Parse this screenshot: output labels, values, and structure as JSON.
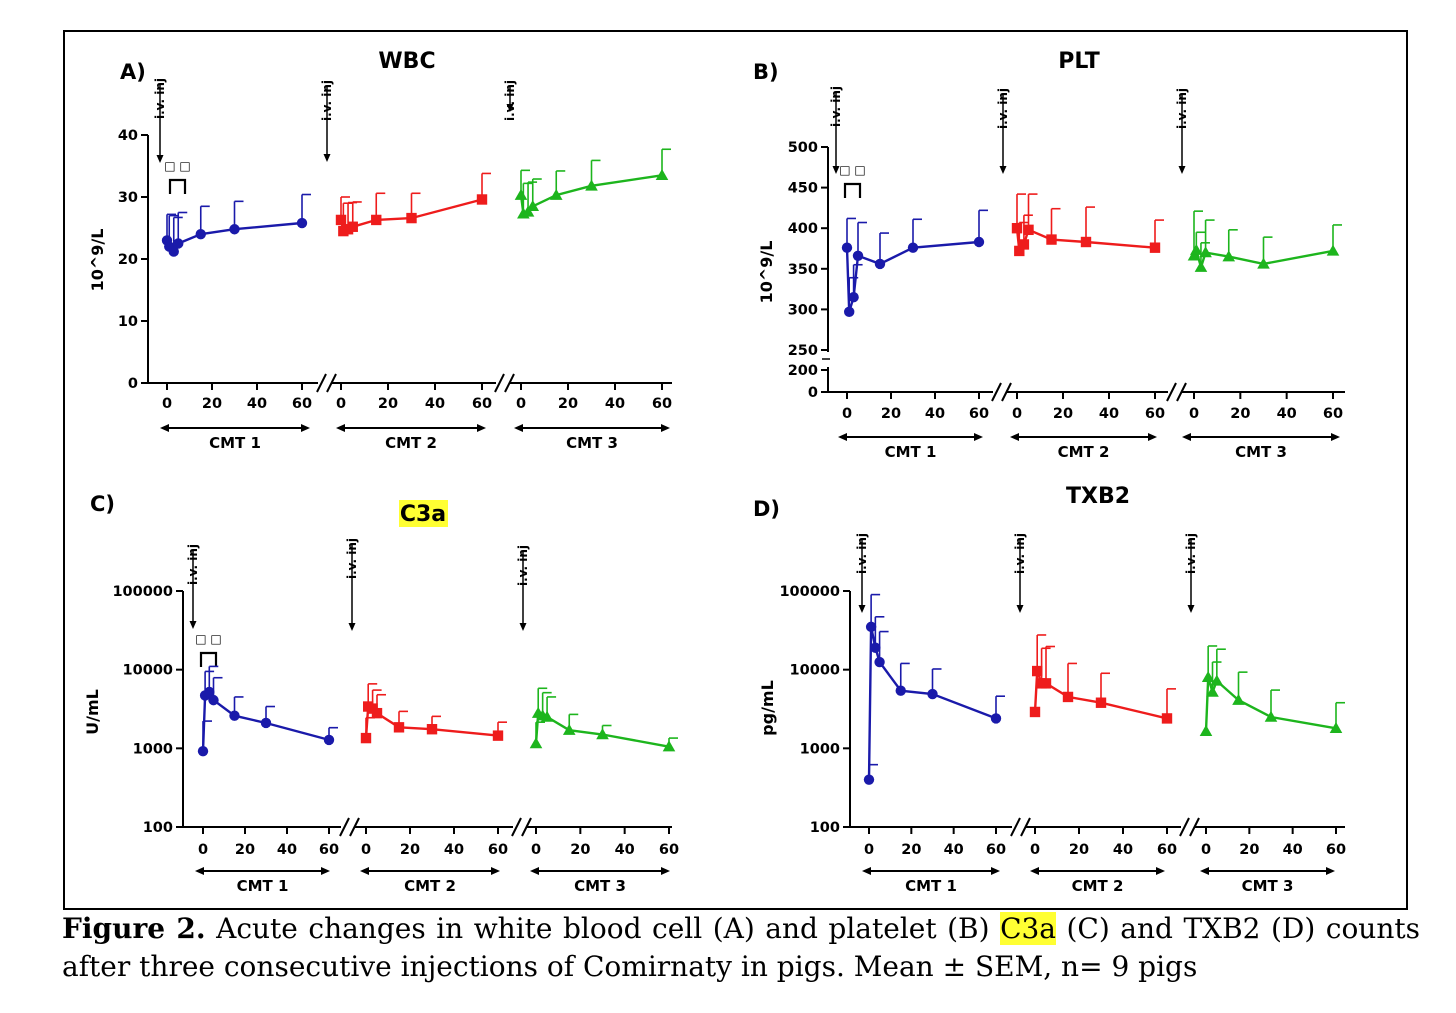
{
  "caption": {
    "label": "Figure 2.",
    "text_before": " Acute changes in white blood cell (A) and platelet (B) ",
    "highlight": "C3a",
    "text_after": " (C) and TXB2 (D) counts after three consecutive injections of Comirnaty in pigs.  Mean ± SEM, n= 9 pigs",
    "highlight_color": "#ffff33"
  },
  "injection_label": "i.v. inj",
  "significance_mark": "□ □",
  "colors": {
    "CMT 1": "#1a1aaa",
    "CMT 2": "#ee1c1c",
    "CMT 3": "#1db51d"
  },
  "chart_data": [
    {
      "panel": "A)",
      "title": "WBC",
      "type": "line",
      "ylabel": "10^9/L",
      "yscale": "linear",
      "ylim": [
        0,
        40
      ],
      "yticks": [
        "0",
        "10",
        "20",
        "30",
        "40"
      ],
      "xticks": [
        "0",
        "20",
        "40",
        "60"
      ],
      "xlim": [
        0,
        60
      ],
      "markers": {
        "CMT 1": "circle",
        "CMT 2": "square",
        "CMT 3": "triangle"
      },
      "series": [
        {
          "name": "CMT 1",
          "x": [
            0,
            1,
            3,
            5,
            15,
            30,
            60
          ],
          "y": [
            23,
            22,
            21.2,
            22.5,
            24,
            24.8,
            25.8
          ],
          "err": [
            4.2,
            5,
            5.5,
            5,
            4.5,
            4.5,
            4.6
          ]
        },
        {
          "name": "CMT 2",
          "x": [
            0,
            1,
            3,
            5,
            15,
            30,
            60
          ],
          "y": [
            26.3,
            24.5,
            24.8,
            25.2,
            26.3,
            26.6,
            29.6
          ],
          "err": [
            3.7,
            4.5,
            4.3,
            4,
            4.3,
            4,
            4.2
          ]
        },
        {
          "name": "CMT 3",
          "x": [
            0,
            1,
            3,
            5,
            15,
            30,
            60
          ],
          "y": [
            30.3,
            27.3,
            27.6,
            28.5,
            30.3,
            31.8,
            33.5
          ],
          "err": [
            4,
            4.9,
            4.8,
            4.4,
            3.9,
            4.1,
            4.2
          ]
        }
      ]
    },
    {
      "panel": "B)",
      "title": "PLT",
      "type": "line",
      "ylabel": "10^9/L",
      "yscale": "linear-broken",
      "ylim": [
        0,
        500
      ],
      "yticks": [
        "0",
        "200",
        "250",
        "300",
        "350",
        "400",
        "450",
        "500"
      ],
      "xticks": [
        "0",
        "20",
        "40",
        "60"
      ],
      "xlim": [
        0,
        60
      ],
      "markers": {
        "CMT 1": "circle",
        "CMT 2": "square",
        "CMT 3": "triangle"
      },
      "series": [
        {
          "name": "CMT 1",
          "x": [
            0,
            1,
            3,
            5,
            15,
            30,
            60
          ],
          "y": [
            376,
            297,
            315,
            366,
            356,
            376,
            383
          ],
          "err": [
            36,
            42,
            40,
            41,
            38,
            35,
            39
          ]
        },
        {
          "name": "CMT 2",
          "x": [
            0,
            1,
            3,
            5,
            15,
            30,
            60
          ],
          "y": [
            400,
            372,
            380,
            398,
            386,
            383,
            376
          ],
          "err": [
            42,
            35,
            36,
            44,
            38,
            43,
            34
          ]
        },
        {
          "name": "CMT 3",
          "x": [
            0,
            1,
            3,
            5,
            15,
            30,
            60
          ],
          "y": [
            366,
            373,
            352,
            370,
            365,
            356,
            372
          ],
          "err": [
            55,
            22,
            30,
            40,
            33,
            33,
            32
          ]
        }
      ]
    },
    {
      "panel": "C)",
      "title": "C3a",
      "type": "line",
      "ylabel": "U/mL",
      "yscale": "log",
      "ylim": [
        100,
        100000
      ],
      "yticks": [
        "100",
        "1000",
        "10000",
        "100000"
      ],
      "xticks": [
        "0",
        "20",
        "40",
        "60"
      ],
      "xlim": [
        0,
        60
      ],
      "markers": {
        "CMT 1": "circle",
        "CMT 2": "square",
        "CMT 3": "triangle"
      },
      "series": [
        {
          "name": "CMT 1",
          "x": [
            0,
            1,
            3,
            5,
            15,
            30,
            60
          ],
          "y": [
            920,
            4700,
            5200,
            4100,
            2600,
            2100,
            1280
          ],
          "err": [
            1300,
            4800,
            5800,
            3800,
            1900,
            1300,
            550
          ]
        },
        {
          "name": "CMT 2",
          "x": [
            0,
            1,
            3,
            5,
            15,
            30,
            60
          ],
          "y": [
            1350,
            3400,
            3200,
            2800,
            1850,
            1750,
            1450
          ],
          "err": [
            1100,
            3200,
            2300,
            2000,
            1100,
            800,
            700
          ]
        },
        {
          "name": "CMT 3",
          "x": [
            0,
            1,
            3,
            5,
            15,
            30,
            60
          ],
          "y": [
            1150,
            2800,
            2600,
            2500,
            1700,
            1500,
            1050
          ],
          "err": [
            1000,
            3000,
            2500,
            2000,
            1000,
            450,
            300
          ]
        }
      ]
    },
    {
      "panel": "D)",
      "title": "TXB2",
      "type": "line",
      "ylabel": "pg/mL",
      "yscale": "log",
      "ylim": [
        100,
        100000
      ],
      "yticks": [
        "100",
        "1000",
        "10000",
        "100000"
      ],
      "xticks": [
        "0",
        "20",
        "40",
        "60"
      ],
      "xlim": [
        0,
        60
      ],
      "markers": {
        "CMT 1": "circle",
        "CMT 2": "square",
        "CMT 3": "triangle"
      },
      "series": [
        {
          "name": "CMT 1",
          "x": [
            0,
            1,
            3,
            5,
            15,
            30,
            60
          ],
          "y": [
            400,
            35000,
            19000,
            12500,
            5400,
            4900,
            2400
          ],
          "err": [
            220,
            55000,
            28000,
            18000,
            6600,
            5300,
            2200
          ]
        },
        {
          "name": "CMT 2",
          "x": [
            0,
            1,
            3,
            5,
            15,
            30,
            60
          ],
          "y": [
            2900,
            9600,
            6700,
            6700,
            4500,
            3800,
            2400
          ],
          "err": [
            0,
            18000,
            12000,
            13000,
            7500,
            5200,
            3300
          ]
        },
        {
          "name": "CMT 3",
          "x": [
            0,
            1,
            3,
            5,
            15,
            30,
            60
          ],
          "y": [
            1650,
            8000,
            5200,
            7200,
            4100,
            2500,
            1800
          ],
          "err": [
            0,
            12000,
            7300,
            11000,
            5200,
            3000,
            2000
          ]
        }
      ]
    }
  ]
}
